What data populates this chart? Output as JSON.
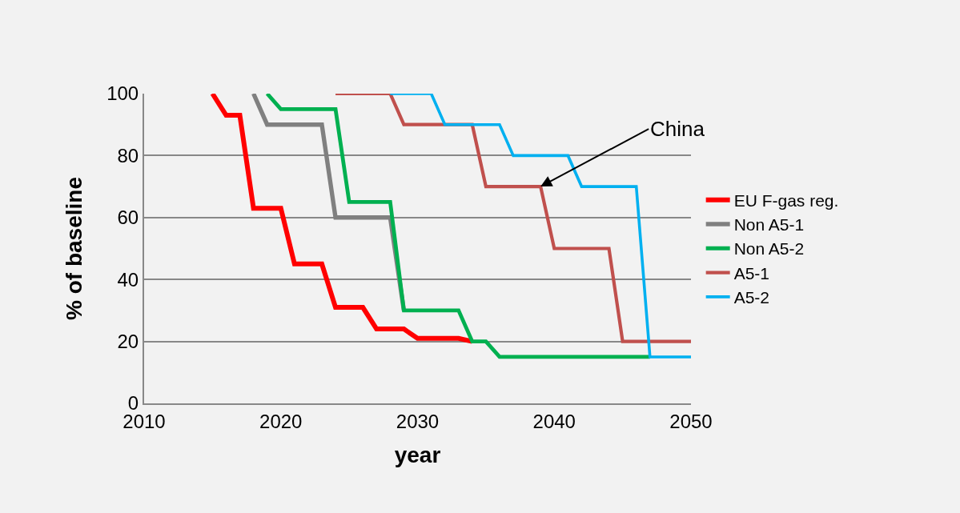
{
  "chart_data": {
    "type": "line",
    "xlabel": "year",
    "ylabel": "% of baseline",
    "xlim": [
      2010,
      2050
    ],
    "xticks": [
      2010,
      2020,
      2030,
      2040,
      2050
    ],
    "ylim": [
      0,
      100
    ],
    "yticks": [
      0,
      20,
      40,
      60,
      80,
      100
    ],
    "grid": "y",
    "legend": "right",
    "marker": "none",
    "line_style": "solid",
    "annotations": [
      {
        "text": "China",
        "x": 2039,
        "y": 70
      }
    ],
    "series": [
      {
        "name": "EU F-gas reg.",
        "color": "#ff0000",
        "x": [
          2015,
          2016,
          2017,
          2018,
          2019,
          2020,
          2021,
          2022,
          2023,
          2024,
          2025,
          2026,
          2027,
          2028,
          2029,
          2030,
          2031,
          2032,
          2033,
          2034
        ],
        "values": [
          100,
          93,
          93,
          63,
          63,
          63,
          45,
          45,
          45,
          31,
          31,
          31,
          24,
          24,
          24,
          21,
          21,
          21,
          21,
          20
        ]
      },
      {
        "name": "Non A5-1",
        "color": "#808080",
        "x": [
          2018,
          2019,
          2020,
          2021,
          2022,
          2023,
          2024,
          2025,
          2026,
          2027,
          2028,
          2029
        ],
        "values": [
          100,
          90,
          90,
          90,
          90,
          90,
          60,
          60,
          60,
          60,
          60,
          30
        ]
      },
      {
        "name": "Non A5-2",
        "color": "#00b050",
        "x": [
          2019,
          2020,
          2021,
          2022,
          2023,
          2024,
          2025,
          2026,
          2027,
          2028,
          2029,
          2030,
          2031,
          2032,
          2033,
          2034,
          2035,
          2036,
          2037,
          2038,
          2039,
          2040,
          2041,
          2042,
          2043,
          2044,
          2045,
          2046,
          2047
        ],
        "values": [
          100,
          95,
          95,
          95,
          95,
          95,
          65,
          65,
          65,
          65,
          30,
          30,
          30,
          30,
          30,
          20,
          20,
          15,
          15,
          15,
          15,
          15,
          15,
          15,
          15,
          15,
          15,
          15,
          15
        ]
      },
      {
        "name": "A5-1",
        "color": "#c0504d",
        "x": [
          2024,
          2025,
          2026,
          2027,
          2028,
          2029,
          2030,
          2031,
          2032,
          2033,
          2034,
          2035,
          2036,
          2037,
          2038,
          2039,
          2040,
          2041,
          2042,
          2043,
          2044,
          2045,
          2046,
          2047,
          2048,
          2049,
          2050
        ],
        "values": [
          100,
          100,
          100,
          100,
          100,
          90,
          90,
          90,
          90,
          90,
          90,
          70,
          70,
          70,
          70,
          70,
          50,
          50,
          50,
          50,
          50,
          20,
          20,
          20,
          20,
          20,
          20
        ]
      },
      {
        "name": "A5-2",
        "color": "#00b0f0",
        "x": [
          2028,
          2029,
          2030,
          2031,
          2032,
          2033,
          2034,
          2035,
          2036,
          2037,
          2038,
          2039,
          2040,
          2041,
          2042,
          2043,
          2044,
          2045,
          2046,
          2047,
          2048,
          2049,
          2050
        ],
        "values": [
          100,
          100,
          100,
          100,
          90,
          90,
          90,
          90,
          90,
          80,
          80,
          80,
          80,
          80,
          70,
          70,
          70,
          70,
          70,
          15,
          15,
          15,
          15
        ]
      }
    ]
  }
}
